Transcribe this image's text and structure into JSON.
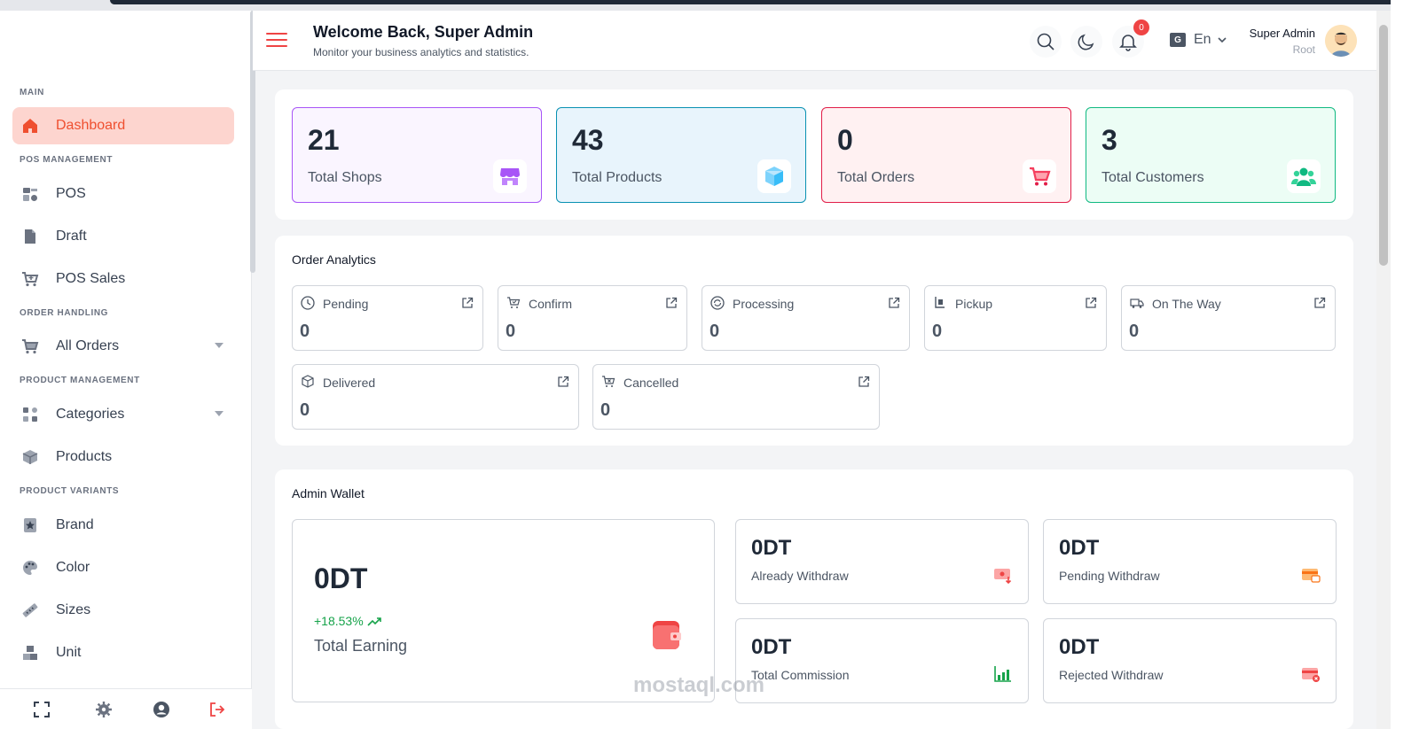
{
  "sidebar": {
    "sections": {
      "main": "MAIN",
      "pos": "POS MANAGEMENT",
      "orders": "ORDER HANDLING",
      "product": "PRODUCT MANAGEMENT",
      "variants": "PRODUCT VARIANTS"
    },
    "items": {
      "dashboard": "Dashboard",
      "pos": "POS",
      "draft": "Draft",
      "pos_sales": "POS Sales",
      "all_orders": "All Orders",
      "categories": "Categories",
      "products": "Products",
      "brand": "Brand",
      "color": "Color",
      "sizes": "Sizes",
      "unit": "Unit"
    },
    "footer_icons": [
      "fullscreen-icon",
      "settings-icon",
      "profile-icon",
      "logout-icon"
    ]
  },
  "header": {
    "title": "Welcome Back, Super Admin",
    "subtitle": "Monitor your business analytics and statistics.",
    "notification_count": "0",
    "language": "En",
    "user_name": "Super Admin",
    "user_role": "Root"
  },
  "stats": [
    {
      "value": "21",
      "label": "Total Shops",
      "color": "#a855f7",
      "bg": "#faf5ff"
    },
    {
      "value": "43",
      "label": "Total Products",
      "color": "#0891b2",
      "bg": "#e8f4fc"
    },
    {
      "value": "0",
      "label": "Total Orders",
      "color": "#e11d48",
      "bg": "#fff1f2"
    },
    {
      "value": "3",
      "label": "Total Customers",
      "color": "#10b981",
      "bg": "#ecfdf5"
    }
  ],
  "order_analytics": {
    "title": "Order Analytics",
    "items": [
      {
        "label": "Pending",
        "value": "0"
      },
      {
        "label": "Confirm",
        "value": "0"
      },
      {
        "label": "Processing",
        "value": "0"
      },
      {
        "label": "Pickup",
        "value": "0"
      },
      {
        "label": "On The Way",
        "value": "0"
      },
      {
        "label": "Delivered",
        "value": "0"
      },
      {
        "label": "Cancelled",
        "value": "0"
      }
    ]
  },
  "wallet": {
    "title": "Admin Wallet",
    "total_amount": "0DT",
    "growth": "+18.53%",
    "total_label": "Total Earning",
    "cards": [
      {
        "amount": "0DT",
        "label": "Already Withdraw"
      },
      {
        "amount": "0DT",
        "label": "Pending Withdraw"
      },
      {
        "amount": "0DT",
        "label": "Total Commission"
      },
      {
        "amount": "0DT",
        "label": "Rejected Withdraw"
      }
    ]
  },
  "watermark": "mostaql.com",
  "colors": {
    "accent": "#ef4f2f",
    "active_bg": "#fdd5cf"
  }
}
